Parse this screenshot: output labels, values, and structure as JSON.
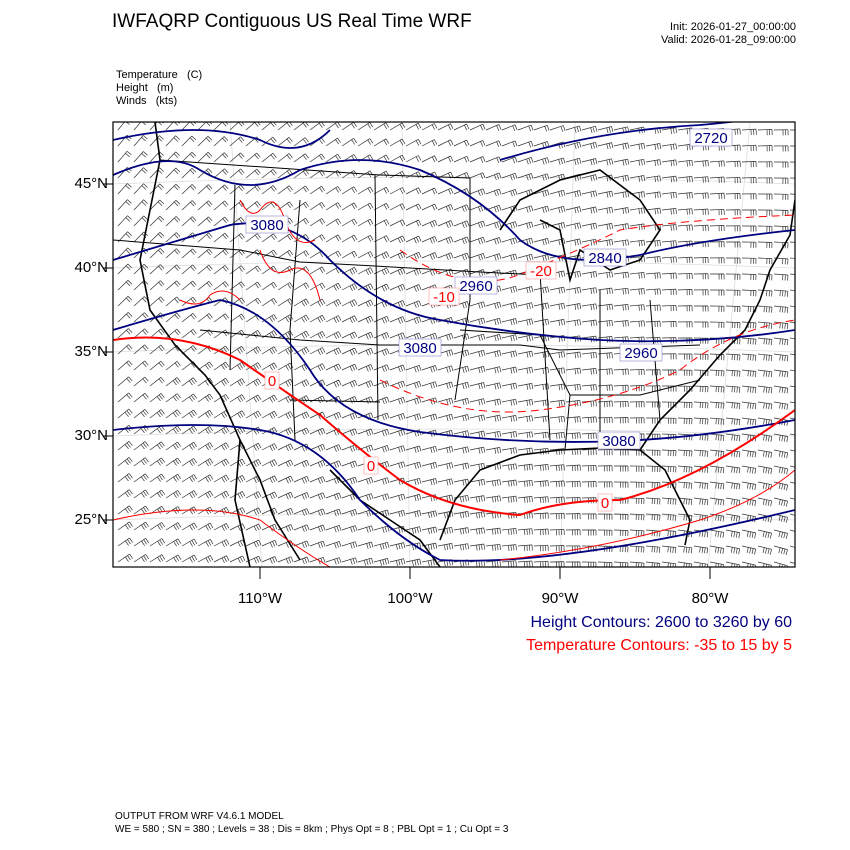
{
  "header": {
    "title": "IWFAQRP Contiguous US Real Time WRF",
    "init": "Init: 2026-01-27_00:00:00",
    "valid": "Valid: 2026-01-28_09:00:00"
  },
  "fields": [
    {
      "name": "Temperature",
      "unit": "(C)"
    },
    {
      "name": "Height",
      "unit": "(m)"
    },
    {
      "name": "Winds",
      "unit": "(kts)"
    }
  ],
  "map": {
    "lat_labels": [
      "45°N",
      "40°N",
      "35°N",
      "30°N",
      "25°N"
    ],
    "lon_labels": [
      "110°W",
      "100°W",
      "90°W",
      "80°W"
    ],
    "height_labels": [
      "2720",
      "3080",
      "2840",
      "2960",
      "3080",
      "2960",
      "3080"
    ],
    "temperature_labels": [
      "-20",
      "-10",
      "0",
      "0",
      "0"
    ],
    "colors": {
      "height": "#000080",
      "temperature": "#ff0000",
      "borders": "#000000"
    }
  },
  "legend": {
    "height_contours": "Height Contours: 2600 to 3260 by 60",
    "temperature_contours": "Temperature Contours: -35 to 15 by 5"
  },
  "footer": {
    "line1": "OUTPUT FROM WRF V4.6.1 MODEL",
    "line2": "WE = 580 ; SN = 380 ; Levels = 38 ; Dis = 8km ; Phys Opt = 8 ; PBL Opt = 1 ; Cu Opt = 3"
  }
}
